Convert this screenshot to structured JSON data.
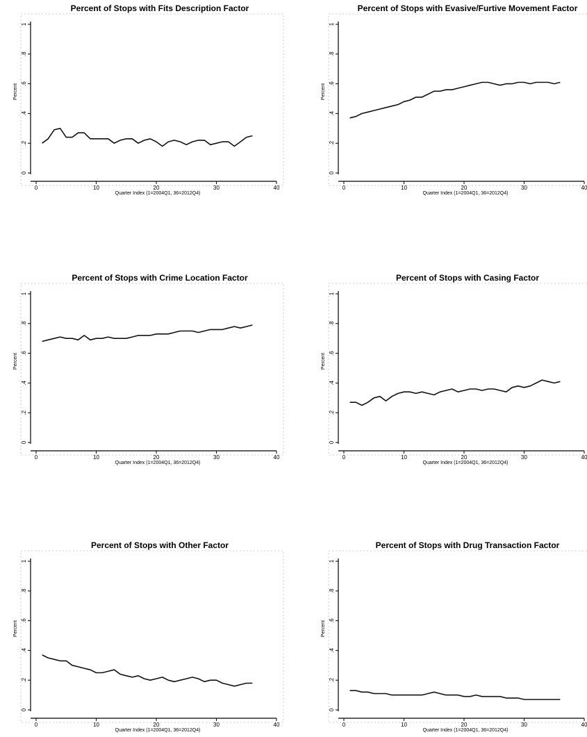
{
  "chart_data": [
    {
      "type": "line",
      "title": "Percent of Stops with Fits Description Factor",
      "xlabel": "Quarter Index (1=2004Q1, 36=2012Q4)",
      "ylabel": "Percent",
      "xlim": [
        0,
        40
      ],
      "ylim": [
        0,
        1
      ],
      "xticks": [
        0,
        10,
        20,
        30,
        40
      ],
      "xtick_labels": [
        "0",
        "10",
        "20",
        "30",
        "40"
      ],
      "yticks": [
        0,
        0.2,
        0.4,
        0.6,
        0.8,
        1
      ],
      "ytick_labels": [
        "0",
        ".2",
        ".4",
        ".6",
        ".8",
        "1"
      ],
      "x": [
        1,
        2,
        3,
        4,
        5,
        6,
        7,
        8,
        9,
        10,
        11,
        12,
        13,
        14,
        15,
        16,
        17,
        18,
        19,
        20,
        21,
        22,
        23,
        24,
        25,
        26,
        27,
        28,
        29,
        30,
        31,
        32,
        33,
        34,
        35,
        36
      ],
      "series": [
        {
          "values": [
            0.2,
            0.23,
            0.29,
            0.3,
            0.24,
            0.24,
            0.27,
            0.27,
            0.23,
            0.23,
            0.23,
            0.23,
            0.2,
            0.22,
            0.23,
            0.23,
            0.2,
            0.22,
            0.23,
            0.21,
            0.18,
            0.21,
            0.22,
            0.21,
            0.19,
            0.21,
            0.22,
            0.22,
            0.19,
            0.2,
            0.21,
            0.21,
            0.18,
            0.21,
            0.24,
            0.25
          ]
        }
      ]
    },
    {
      "type": "line",
      "title": "Percent of Stops with Evasive/Furtive Movement Factor",
      "xlabel": "Quarter Index (1=2004Q1, 36=2012Q4)",
      "ylabel": "Percent",
      "xlim": [
        0,
        40
      ],
      "ylim": [
        0,
        1
      ],
      "xticks": [
        0,
        10,
        20,
        30,
        40
      ],
      "xtick_labels": [
        "0",
        "10",
        "20",
        "30",
        "40"
      ],
      "yticks": [
        0,
        0.2,
        0.4,
        0.6,
        0.8,
        1
      ],
      "ytick_labels": [
        "0",
        ".2",
        ".4",
        ".6",
        ".8",
        "1"
      ],
      "x": [
        1,
        2,
        3,
        4,
        5,
        6,
        7,
        8,
        9,
        10,
        11,
        12,
        13,
        14,
        15,
        16,
        17,
        18,
        19,
        20,
        21,
        22,
        23,
        24,
        25,
        26,
        27,
        28,
        29,
        30,
        31,
        32,
        33,
        34,
        35,
        36
      ],
      "series": [
        {
          "values": [
            0.37,
            0.38,
            0.4,
            0.41,
            0.42,
            0.43,
            0.44,
            0.45,
            0.46,
            0.48,
            0.49,
            0.51,
            0.51,
            0.53,
            0.55,
            0.55,
            0.56,
            0.56,
            0.57,
            0.58,
            0.59,
            0.6,
            0.61,
            0.61,
            0.6,
            0.59,
            0.6,
            0.6,
            0.61,
            0.61,
            0.6,
            0.61,
            0.61,
            0.61,
            0.6,
            0.61
          ]
        }
      ]
    },
    {
      "type": "line",
      "title": "Percent of Stops with Crime Location Factor",
      "xlabel": "Quarter Index (1=2004Q1, 36=2012Q4)",
      "ylabel": "Percent",
      "xlim": [
        0,
        40
      ],
      "ylim": [
        0,
        1
      ],
      "xticks": [
        0,
        10,
        20,
        30,
        40
      ],
      "xtick_labels": [
        "0",
        "10",
        "20",
        "30",
        "40"
      ],
      "yticks": [
        0,
        0.2,
        0.4,
        0.6,
        0.8,
        1
      ],
      "ytick_labels": [
        "0",
        ".2",
        ".4",
        ".6",
        ".8",
        "1"
      ],
      "x": [
        1,
        2,
        3,
        4,
        5,
        6,
        7,
        8,
        9,
        10,
        11,
        12,
        13,
        14,
        15,
        16,
        17,
        18,
        19,
        20,
        21,
        22,
        23,
        24,
        25,
        26,
        27,
        28,
        29,
        30,
        31,
        32,
        33,
        34,
        35,
        36
      ],
      "series": [
        {
          "values": [
            0.68,
            0.69,
            0.7,
            0.71,
            0.7,
            0.7,
            0.69,
            0.72,
            0.69,
            0.7,
            0.7,
            0.71,
            0.7,
            0.7,
            0.7,
            0.71,
            0.72,
            0.72,
            0.72,
            0.73,
            0.73,
            0.73,
            0.74,
            0.75,
            0.75,
            0.75,
            0.74,
            0.75,
            0.76,
            0.76,
            0.76,
            0.77,
            0.78,
            0.77,
            0.78,
            0.79
          ]
        }
      ]
    },
    {
      "type": "line",
      "title": "Percent of Stops with Casing Factor",
      "xlabel": "Quarter Index (1=2004Q1, 36=2012Q4)",
      "ylabel": "Percent",
      "xlim": [
        0,
        40
      ],
      "ylim": [
        0,
        1
      ],
      "xticks": [
        0,
        10,
        20,
        30,
        40
      ],
      "xtick_labels": [
        "0",
        "10",
        "20",
        "30",
        "40"
      ],
      "yticks": [
        0,
        0.2,
        0.4,
        0.6,
        0.8,
        1
      ],
      "ytick_labels": [
        "0",
        ".2",
        ".4",
        ".6",
        ".8",
        "1"
      ],
      "x": [
        1,
        2,
        3,
        4,
        5,
        6,
        7,
        8,
        9,
        10,
        11,
        12,
        13,
        14,
        15,
        16,
        17,
        18,
        19,
        20,
        21,
        22,
        23,
        24,
        25,
        26,
        27,
        28,
        29,
        30,
        31,
        32,
        33,
        34,
        35,
        36
      ],
      "series": [
        {
          "values": [
            0.27,
            0.27,
            0.25,
            0.27,
            0.3,
            0.31,
            0.28,
            0.31,
            0.33,
            0.34,
            0.34,
            0.33,
            0.34,
            0.33,
            0.32,
            0.34,
            0.35,
            0.36,
            0.34,
            0.35,
            0.36,
            0.36,
            0.35,
            0.36,
            0.36,
            0.35,
            0.34,
            0.37,
            0.38,
            0.37,
            0.38,
            0.4,
            0.42,
            0.41,
            0.4,
            0.41
          ]
        }
      ]
    },
    {
      "type": "line",
      "title": "Percent of Stops with Other Factor",
      "xlabel": "Quarter Index (1=2004Q1, 36=2012Q4)",
      "ylabel": "Percent",
      "xlim": [
        0,
        40
      ],
      "ylim": [
        0,
        1
      ],
      "xticks": [
        0,
        10,
        20,
        30,
        40
      ],
      "xtick_labels": [
        "0",
        "10",
        "20",
        "30",
        "40"
      ],
      "yticks": [
        0,
        0.2,
        0.4,
        0.6,
        0.8,
        1
      ],
      "ytick_labels": [
        "0",
        ".2",
        ".4",
        ".6",
        ".8",
        "1"
      ],
      "x": [
        1,
        2,
        3,
        4,
        5,
        6,
        7,
        8,
        9,
        10,
        11,
        12,
        13,
        14,
        15,
        16,
        17,
        18,
        19,
        20,
        21,
        22,
        23,
        24,
        25,
        26,
        27,
        28,
        29,
        30,
        31,
        32,
        33,
        34,
        35,
        36
      ],
      "series": [
        {
          "values": [
            0.37,
            0.35,
            0.34,
            0.33,
            0.33,
            0.3,
            0.29,
            0.28,
            0.27,
            0.25,
            0.25,
            0.26,
            0.27,
            0.24,
            0.23,
            0.22,
            0.23,
            0.21,
            0.2,
            0.21,
            0.22,
            0.2,
            0.19,
            0.2,
            0.21,
            0.22,
            0.21,
            0.19,
            0.2,
            0.2,
            0.18,
            0.17,
            0.16,
            0.17,
            0.18,
            0.18
          ]
        }
      ]
    },
    {
      "type": "line",
      "title": "Percent of Stops with Drug Transaction Factor",
      "xlabel": "Quarter Index (1=2004Q1, 36=2012Q4)",
      "ylabel": "Percent",
      "xlim": [
        0,
        40
      ],
      "ylim": [
        0,
        1
      ],
      "xticks": [
        0,
        10,
        20,
        30,
        40
      ],
      "xtick_labels": [
        "0",
        "10",
        "20",
        "30",
        "40"
      ],
      "yticks": [
        0,
        0.2,
        0.4,
        0.6,
        0.8,
        1
      ],
      "ytick_labels": [
        "0",
        ".2",
        ".4",
        ".6",
        ".8",
        "1"
      ],
      "x": [
        1,
        2,
        3,
        4,
        5,
        6,
        7,
        8,
        9,
        10,
        11,
        12,
        13,
        14,
        15,
        16,
        17,
        18,
        19,
        20,
        21,
        22,
        23,
        24,
        25,
        26,
        27,
        28,
        29,
        30,
        31,
        32,
        33,
        34,
        35,
        36
      ],
      "series": [
        {
          "values": [
            0.13,
            0.13,
            0.12,
            0.12,
            0.11,
            0.11,
            0.11,
            0.1,
            0.1,
            0.1,
            0.1,
            0.1,
            0.1,
            0.11,
            0.12,
            0.11,
            0.1,
            0.1,
            0.1,
            0.09,
            0.09,
            0.1,
            0.09,
            0.09,
            0.09,
            0.09,
            0.08,
            0.08,
            0.08,
            0.07,
            0.07,
            0.07,
            0.07,
            0.07,
            0.07,
            0.07
          ]
        }
      ]
    }
  ],
  "style": {
    "line_color": "#111111",
    "axis_color": "#000000",
    "background": "#ffffff"
  }
}
